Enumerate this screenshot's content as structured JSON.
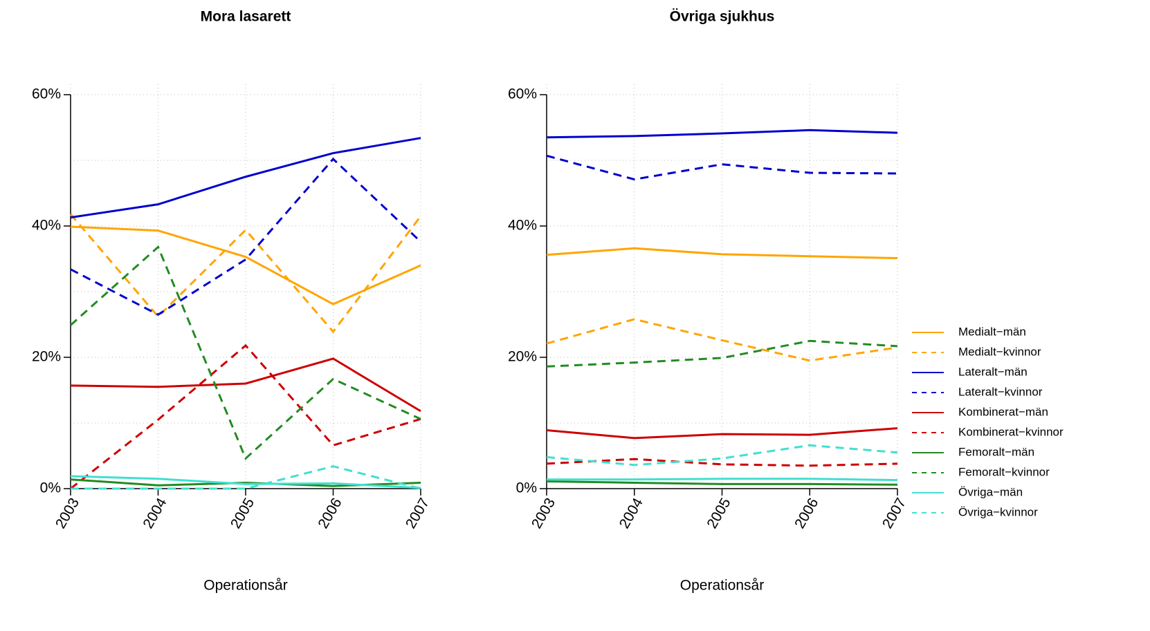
{
  "chart_data": [
    {
      "type": "line",
      "title": "Mora lasarett",
      "xlabel": "Operationsår",
      "x": [
        2003,
        2004,
        2005,
        2006,
        2007
      ],
      "xlim": [
        2003,
        2007
      ],
      "xticks": [
        2003,
        2004,
        2005,
        2006,
        2007
      ],
      "ylim": [
        0,
        60
      ],
      "yticks": [
        {
          "value": 0,
          "label": "0%"
        },
        {
          "value": 20,
          "label": "20%"
        },
        {
          "value": 40,
          "label": "40%"
        },
        {
          "value": 60,
          "label": "60%"
        }
      ],
      "ygrid": [
        0,
        10,
        20,
        30,
        40,
        50,
        60
      ],
      "grid": true,
      "series": [
        {
          "color": "#FFA500",
          "dash": false,
          "values": [
            39.9,
            39.3,
            35.3,
            28.1,
            34.0
          ]
        },
        {
          "color": "#FFA500",
          "dash": true,
          "values": [
            41.8,
            26.2,
            39.4,
            23.9,
            41.5
          ]
        },
        {
          "color": "#0000CD",
          "dash": false,
          "values": [
            41.3,
            43.3,
            47.5,
            51.1,
            53.4
          ]
        },
        {
          "color": "#0000CD",
          "dash": true,
          "values": [
            33.4,
            26.5,
            34.9,
            50.2,
            37.6
          ]
        },
        {
          "color": "#CD0000",
          "dash": false,
          "values": [
            15.7,
            15.5,
            16.0,
            19.8,
            11.8
          ]
        },
        {
          "color": "#CD0000",
          "dash": true,
          "values": [
            0,
            10.5,
            21.8,
            6.6,
            10.6
          ]
        },
        {
          "color": "#228B22",
          "dash": false,
          "values": [
            1.4,
            0.5,
            0.9,
            0.4,
            0.9
          ]
        },
        {
          "color": "#228B22",
          "dash": true,
          "values": [
            24.9,
            36.8,
            4.6,
            16.7,
            10.6
          ]
        },
        {
          "color": "#40E0D0",
          "dash": false,
          "values": [
            1.9,
            1.5,
            0.7,
            0.8,
            0.1
          ]
        },
        {
          "color": "#40E0D0",
          "dash": true,
          "values": [
            0,
            0,
            0,
            3.4,
            0
          ]
        }
      ]
    },
    {
      "type": "line",
      "title": "Övriga sjukhus",
      "xlabel": "Operationsår",
      "x": [
        2003,
        2004,
        2005,
        2006,
        2007
      ],
      "xlim": [
        2003,
        2007
      ],
      "xticks": [
        2003,
        2004,
        2005,
        2006,
        2007
      ],
      "ylim": [
        0,
        60
      ],
      "yticks": [
        {
          "value": 0,
          "label": "0%"
        },
        {
          "value": 20,
          "label": "20%"
        },
        {
          "value": 40,
          "label": "40%"
        },
        {
          "value": 60,
          "label": "60%"
        }
      ],
      "ygrid": [
        0,
        10,
        20,
        30,
        40,
        50,
        60
      ],
      "grid": true,
      "legend": "right",
      "series": [
        {
          "name": "Medialt−män",
          "color": "#FFA500",
          "dash": false,
          "values": [
            35.6,
            36.6,
            35.7,
            35.4,
            35.1
          ]
        },
        {
          "name": "Medialt−kvinnor",
          "color": "#FFA500",
          "dash": true,
          "values": [
            22.1,
            25.8,
            22.6,
            19.5,
            21.5
          ]
        },
        {
          "name": "Lateralt−män",
          "color": "#0000CD",
          "dash": false,
          "values": [
            53.5,
            53.7,
            54.1,
            54.6,
            54.2
          ]
        },
        {
          "name": "Lateralt−kvinnor",
          "color": "#0000CD",
          "dash": true,
          "values": [
            50.7,
            47.1,
            49.4,
            48.1,
            48.0
          ]
        },
        {
          "name": "Kombinerat−män",
          "color": "#CD0000",
          "dash": false,
          "values": [
            8.9,
            7.7,
            8.3,
            8.2,
            9.2
          ]
        },
        {
          "name": "Kombinerat−kvinnor",
          "color": "#CD0000",
          "dash": true,
          "values": [
            3.8,
            4.5,
            3.7,
            3.5,
            3.8
          ]
        },
        {
          "name": "Femoralt−män",
          "color": "#228B22",
          "dash": false,
          "values": [
            1.1,
            0.9,
            0.7,
            0.7,
            0.6
          ]
        },
        {
          "name": "Femoralt−kvinnor",
          "color": "#228B22",
          "dash": true,
          "values": [
            18.6,
            19.2,
            19.9,
            22.5,
            21.7
          ]
        },
        {
          "name": "Övriga−män",
          "color": "#40E0D0",
          "dash": false,
          "values": [
            1.4,
            1.4,
            1.5,
            1.5,
            1.3
          ]
        },
        {
          "name": "Övriga−kvinnor",
          "color": "#40E0D0",
          "dash": true,
          "values": [
            4.8,
            3.6,
            4.6,
            6.6,
            5.5
          ]
        }
      ]
    }
  ]
}
